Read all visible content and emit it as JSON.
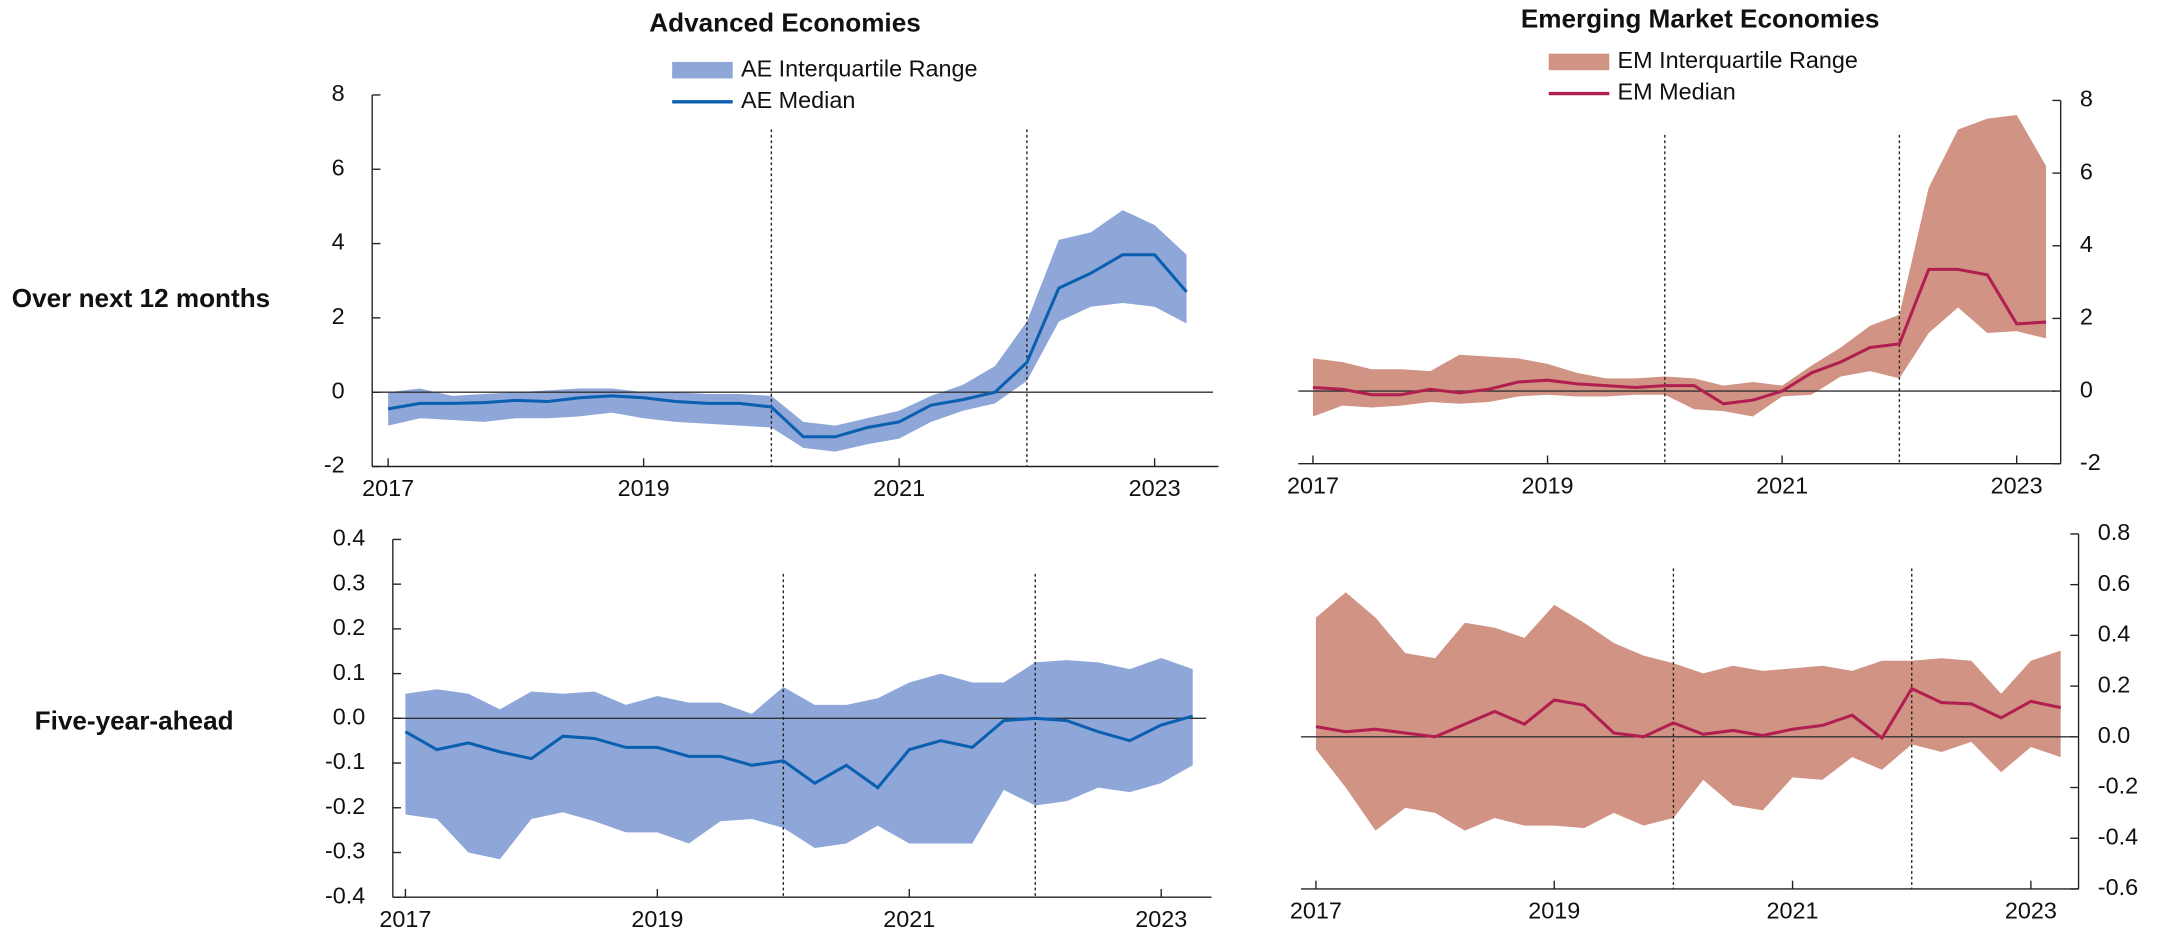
{
  "row_labels": [
    "Over next 12 months",
    "Five-year-ahead"
  ],
  "chart_data": [
    {
      "type": "line",
      "title": "Advanced Economies",
      "legend": true,
      "y_axis_side": "left",
      "x": [
        2017,
        2017.25,
        2017.5,
        2017.75,
        2018,
        2018.25,
        2018.5,
        2018.75,
        2019,
        2019.25,
        2019.5,
        2019.75,
        2020,
        2020.25,
        2020.5,
        2020.75,
        2021,
        2021.25,
        2021.5,
        2021.75,
        2022,
        2022.25,
        2022.5,
        2022.75,
        2023,
        2023.25
      ],
      "series": [
        {
          "name": "AE Interquartile Range",
          "color": "#8ea6d8",
          "kind": "band",
          "upper": [
            0.0,
            0.1,
            -0.1,
            -0.05,
            0.0,
            0.05,
            0.1,
            0.1,
            0.0,
            0.0,
            -0.05,
            -0.05,
            -0.1,
            -0.8,
            -0.9,
            -0.7,
            -0.5,
            -0.1,
            0.2,
            0.7,
            1.9,
            4.1,
            4.3,
            4.9,
            4.5,
            3.7
          ],
          "lower": [
            -0.9,
            -0.7,
            -0.75,
            -0.8,
            -0.7,
            -0.7,
            -0.65,
            -0.55,
            -0.7,
            -0.8,
            -0.85,
            -0.9,
            -0.95,
            -1.5,
            -1.6,
            -1.4,
            -1.25,
            -0.8,
            -0.5,
            -0.3,
            0.3,
            1.9,
            2.3,
            2.4,
            2.3,
            1.85
          ]
        },
        {
          "name": "AE Median",
          "color": "#0a5fb0",
          "values": [
            -0.45,
            -0.3,
            -0.3,
            -0.28,
            -0.22,
            -0.25,
            -0.15,
            -0.1,
            -0.15,
            -0.25,
            -0.3,
            -0.3,
            -0.4,
            -1.2,
            -1.2,
            -0.95,
            -0.8,
            -0.35,
            -0.2,
            0.0,
            0.8,
            2.8,
            3.2,
            3.7,
            3.7,
            2.7
          ]
        }
      ],
      "xlim": [
        2016.875,
        2023.5
      ],
      "xticks": [
        2017,
        2019,
        2021,
        2023
      ],
      "ylim": [
        -2,
        8
      ],
      "yticks": [
        -2,
        0,
        2,
        4,
        6,
        8
      ],
      "vlines": [
        2020,
        2022
      ]
    },
    {
      "type": "line",
      "title": "Emerging Market Economies",
      "legend": true,
      "y_axis_side": "right",
      "x": [
        2017,
        2017.25,
        2017.5,
        2017.75,
        2018,
        2018.25,
        2018.5,
        2018.75,
        2019,
        2019.25,
        2019.5,
        2019.75,
        2020,
        2020.25,
        2020.5,
        2020.75,
        2021,
        2021.25,
        2021.5,
        2021.75,
        2022,
        2022.25,
        2022.5,
        2022.75,
        2023,
        2023.25
      ],
      "series": [
        {
          "name": "EM Interquartile Range",
          "color": "#d19384",
          "kind": "band",
          "upper": [
            0.9,
            0.8,
            0.6,
            0.6,
            0.55,
            1.0,
            0.95,
            0.9,
            0.75,
            0.5,
            0.35,
            0.35,
            0.4,
            0.35,
            0.15,
            0.25,
            0.15,
            0.7,
            1.2,
            1.8,
            2.1,
            5.6,
            7.2,
            7.5,
            7.6,
            6.2
          ],
          "lower": [
            -0.7,
            -0.4,
            -0.45,
            -0.4,
            -0.3,
            -0.35,
            -0.3,
            -0.15,
            -0.1,
            -0.15,
            -0.15,
            -0.1,
            -0.1,
            -0.5,
            -0.55,
            -0.7,
            -0.15,
            -0.1,
            0.4,
            0.55,
            0.35,
            1.6,
            2.3,
            1.6,
            1.65,
            1.45
          ]
        },
        {
          "name": "EM Median",
          "color": "#b01f50",
          "values": [
            0.1,
            0.05,
            -0.1,
            -0.1,
            0.05,
            -0.05,
            0.05,
            0.25,
            0.3,
            0.2,
            0.15,
            0.1,
            0.15,
            0.15,
            -0.35,
            -0.25,
            0.0,
            0.5,
            0.8,
            1.2,
            1.3,
            3.35,
            3.35,
            3.2,
            1.85,
            1.9
          ]
        }
      ],
      "xlim": [
        2016.875,
        2023.375
      ],
      "xticks": [
        2017,
        2019,
        2021,
        2023
      ],
      "ylim": [
        -2,
        8
      ],
      "yticks": [
        -2,
        0,
        2,
        4,
        6,
        8
      ],
      "vlines": [
        2020,
        2022
      ]
    },
    {
      "type": "line",
      "legend": false,
      "y_axis_side": "left",
      "x": [
        2017,
        2017.25,
        2017.5,
        2017.75,
        2018,
        2018.25,
        2018.5,
        2018.75,
        2019,
        2019.25,
        2019.5,
        2019.75,
        2020,
        2020.25,
        2020.5,
        2020.75,
        2021,
        2021.25,
        2021.5,
        2021.75,
        2022,
        2022.25,
        2022.5,
        2022.75,
        2023,
        2023.25
      ],
      "series": [
        {
          "color": "#8ea6d8",
          "kind": "band",
          "upper": [
            0.055,
            0.065,
            0.055,
            0.02,
            0.06,
            0.055,
            0.06,
            0.03,
            0.05,
            0.035,
            0.035,
            0.01,
            0.07,
            0.03,
            0.03,
            0.045,
            0.08,
            0.1,
            0.08,
            0.08,
            0.125,
            0.13,
            0.125,
            0.11,
            0.135,
            0.11
          ],
          "lower": [
            -0.215,
            -0.225,
            -0.3,
            -0.315,
            -0.225,
            -0.21,
            -0.23,
            -0.255,
            -0.255,
            -0.28,
            -0.23,
            -0.225,
            -0.245,
            -0.29,
            -0.28,
            -0.24,
            -0.28,
            -0.28,
            -0.28,
            -0.16,
            -0.195,
            -0.185,
            -0.155,
            -0.165,
            -0.145,
            -0.105
          ]
        },
        {
          "color": "#0a5fb0",
          "values": [
            -0.03,
            -0.07,
            -0.055,
            -0.075,
            -0.09,
            -0.04,
            -0.045,
            -0.065,
            -0.065,
            -0.085,
            -0.085,
            -0.105,
            -0.095,
            -0.145,
            -0.105,
            -0.155,
            -0.07,
            -0.05,
            -0.065,
            -0.005,
            0.0,
            -0.005,
            -0.03,
            -0.05,
            -0.015,
            0.005
          ]
        }
      ],
      "xlim": [
        2016.9,
        2023.4
      ],
      "xticks": [
        2017,
        2019,
        2021,
        2023
      ],
      "ylim": [
        -0.4,
        0.4
      ],
      "yticks": [
        -0.4,
        -0.3,
        -0.2,
        -0.1,
        {
          "value": 0,
          "label": "0.0"
        },
        0.1,
        0.2,
        0.3,
        0.4
      ],
      "vlines": [
        2020,
        2022
      ]
    },
    {
      "type": "line",
      "legend": false,
      "y_axis_side": "right",
      "x": [
        2017,
        2017.25,
        2017.5,
        2017.75,
        2018,
        2018.25,
        2018.5,
        2018.75,
        2019,
        2019.25,
        2019.5,
        2019.75,
        2020,
        2020.25,
        2020.5,
        2020.75,
        2021,
        2021.25,
        2021.5,
        2021.75,
        2022,
        2022.25,
        2022.5,
        2022.75,
        2023,
        2023.25
      ],
      "series": [
        {
          "color": "#d19384",
          "kind": "band",
          "upper": [
            0.47,
            0.57,
            0.47,
            0.33,
            0.31,
            0.45,
            0.43,
            0.39,
            0.52,
            0.45,
            0.37,
            0.32,
            0.29,
            0.25,
            0.28,
            0.26,
            0.27,
            0.28,
            0.26,
            0.3,
            0.3,
            0.31,
            0.3,
            0.17,
            0.3,
            0.34
          ],
          "lower": [
            -0.05,
            -0.2,
            -0.37,
            -0.28,
            -0.3,
            -0.37,
            -0.32,
            -0.35,
            -0.35,
            -0.36,
            -0.3,
            -0.35,
            -0.32,
            -0.17,
            -0.27,
            -0.29,
            -0.16,
            -0.17,
            -0.08,
            -0.13,
            -0.03,
            -0.06,
            -0.02,
            -0.14,
            -0.04,
            -0.08
          ]
        },
        {
          "color": "#b01f50",
          "values": [
            0.04,
            0.02,
            0.03,
            0.015,
            0.0,
            0.05,
            0.1,
            0.05,
            0.145,
            0.125,
            0.015,
            0.0,
            0.055,
            0.01,
            0.025,
            0.005,
            0.03,
            0.045,
            0.085,
            -0.005,
            0.19,
            0.135,
            0.13,
            0.075,
            0.14,
            0.115
          ]
        }
      ],
      "xlim": [
        2016.875,
        2023.4
      ],
      "xticks": [
        2017,
        2019,
        2021,
        2023
      ],
      "ylim": [
        -0.6,
        0.8
      ],
      "yticks": [
        -0.6,
        -0.4,
        -0.2,
        {
          "value": 0,
          "label": "0.0"
        },
        0.2,
        0.4,
        0.6,
        0.8
      ],
      "vlines": [
        2020,
        2022
      ]
    }
  ]
}
